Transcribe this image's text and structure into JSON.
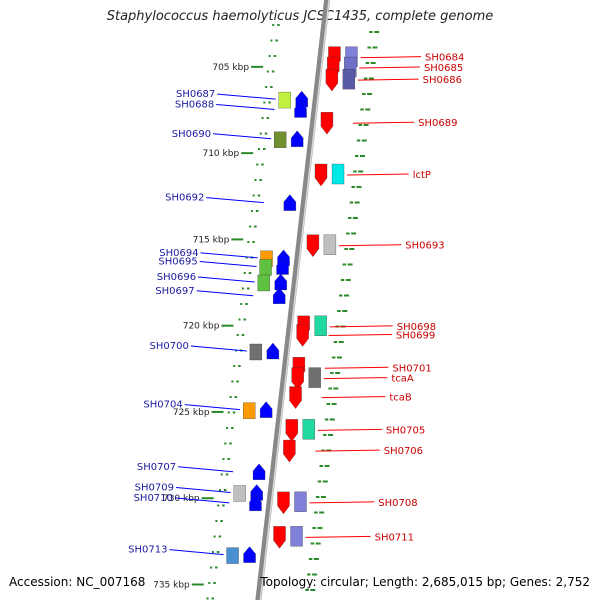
{
  "title": "Staphylococcus haemolyticus JCSC1435, complete genome",
  "accession": "Accession: NC_007168",
  "topology": "Topology: circular; Length: 2,685,015 bp; Genes: 2,752",
  "colors": {
    "forward": "#ff0000",
    "reverse": "#0000ff",
    "forward_label": "#cc0000",
    "reverse_label": "#1a1aa0",
    "tick": "#2a8a2a"
  },
  "scale_labels": [
    "705 kbp",
    "710 kbp",
    "715 kbp",
    "720 kbp",
    "725 kbp",
    "730 kbp",
    "735 kbp"
  ],
  "forward_genes": [
    {
      "label": "SH0684",
      "kbp": 705.8,
      "cog": "#8080d8"
    },
    {
      "label": "SH0685",
      "kbp": 706.4,
      "cog": "#7070c8"
    },
    {
      "label": "SH0686",
      "kbp": 707.1,
      "cog": "#5a5aa8"
    },
    {
      "label": "SH0689",
      "kbp": 709.6,
      "cog": ""
    },
    {
      "label": "lctP",
      "kbp": 712.6,
      "cog": "#00e8e8"
    },
    {
      "label": "SH0693",
      "kbp": 716.7,
      "cog": "#c0c0c0"
    },
    {
      "label": "SH0698",
      "kbp": 721.4,
      "cog": "#20d8a0"
    },
    {
      "label": "SH0699",
      "kbp": 721.9,
      "cog": ""
    },
    {
      "label": "SH0701",
      "kbp": 723.8,
      "cog": ""
    },
    {
      "label": "tcaA",
      "kbp": 724.4,
      "cog": "#707070"
    },
    {
      "label": "tcaB",
      "kbp": 725.5,
      "cog": ""
    },
    {
      "label": "SH0705",
      "kbp": 727.4,
      "cog": "#20d8a0"
    },
    {
      "label": "SH0706",
      "kbp": 728.6,
      "cog": ""
    },
    {
      "label": "SH0708",
      "kbp": 731.6,
      "cog": "#8080d8"
    },
    {
      "label": "SH0711",
      "kbp": 733.6,
      "cog": "#8080d8"
    }
  ],
  "reverse_genes": [
    {
      "label": "SH0687",
      "kbp": 708.2,
      "cog": "#c0f040"
    },
    {
      "label": "SH0688",
      "kbp": 708.8,
      "cog": ""
    },
    {
      "label": "SH0690",
      "kbp": 710.5,
      "cog": "#709030"
    },
    {
      "label": "SH0692",
      "kbp": 714.2,
      "cog": ""
    },
    {
      "label": "SH0694",
      "kbp": 717.4,
      "cog": "#ff9900"
    },
    {
      "label": "SH0695",
      "kbp": 717.9,
      "cog": "#60c040"
    },
    {
      "label": "SH0696",
      "kbp": 718.8,
      "cog": "#60c040"
    },
    {
      "label": "SH0697",
      "kbp": 719.6,
      "cog": ""
    },
    {
      "label": "SH0700",
      "kbp": 722.8,
      "cog": "#707070"
    },
    {
      "label": "SH0704",
      "kbp": 726.2,
      "cog": "#ff9900"
    },
    {
      "label": "SH0707",
      "kbp": 729.8,
      "cog": ""
    },
    {
      "label": "SH0709",
      "kbp": 731.0,
      "cog": "#c0c0c0"
    },
    {
      "label": "SH0710",
      "kbp": 731.6,
      "cog": ""
    },
    {
      "label": "SH0713",
      "kbp": 734.6,
      "cog": "#4a90d0"
    }
  ]
}
